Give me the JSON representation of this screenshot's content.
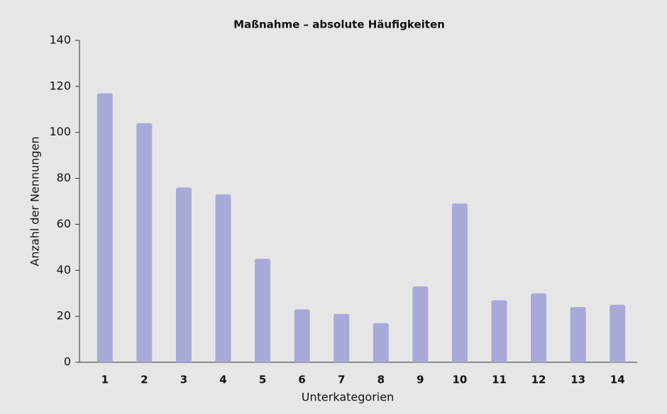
{
  "chart_data": {
    "type": "bar",
    "title": "Maßnahme – absolute Häufigkeiten",
    "x_label": "Unterkategorien",
    "y_label": "Anzahl der Nennungen",
    "categories": [
      "1",
      "2",
      "3",
      "4",
      "5",
      "6",
      "7",
      "8",
      "9",
      "10",
      "11",
      "12",
      "13",
      "14"
    ],
    "values": [
      117,
      104,
      76,
      73,
      45,
      23,
      21,
      17,
      33,
      69,
      27,
      30,
      24,
      25
    ],
    "color": "#a9a9d9",
    "ylim": [
      0,
      140
    ],
    "yticks": [
      0,
      20,
      40,
      60,
      80,
      100,
      120,
      140
    ],
    "grid": false
  }
}
